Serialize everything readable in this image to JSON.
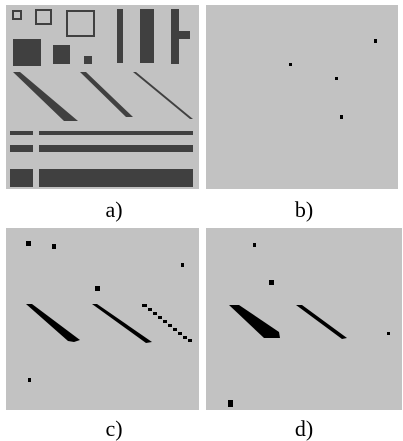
{
  "figure": {
    "background_color": "#c2c2c2",
    "panels": [
      {
        "id": "a",
        "caption": "a)",
        "description_color": "#404040"
      },
      {
        "id": "b",
        "caption": "b)",
        "description_color": "#000000"
      },
      {
        "id": "c",
        "caption": "c)",
        "description_color": "#000000"
      },
      {
        "id": "d",
        "caption": "d)",
        "description_color": "#000000"
      }
    ]
  }
}
